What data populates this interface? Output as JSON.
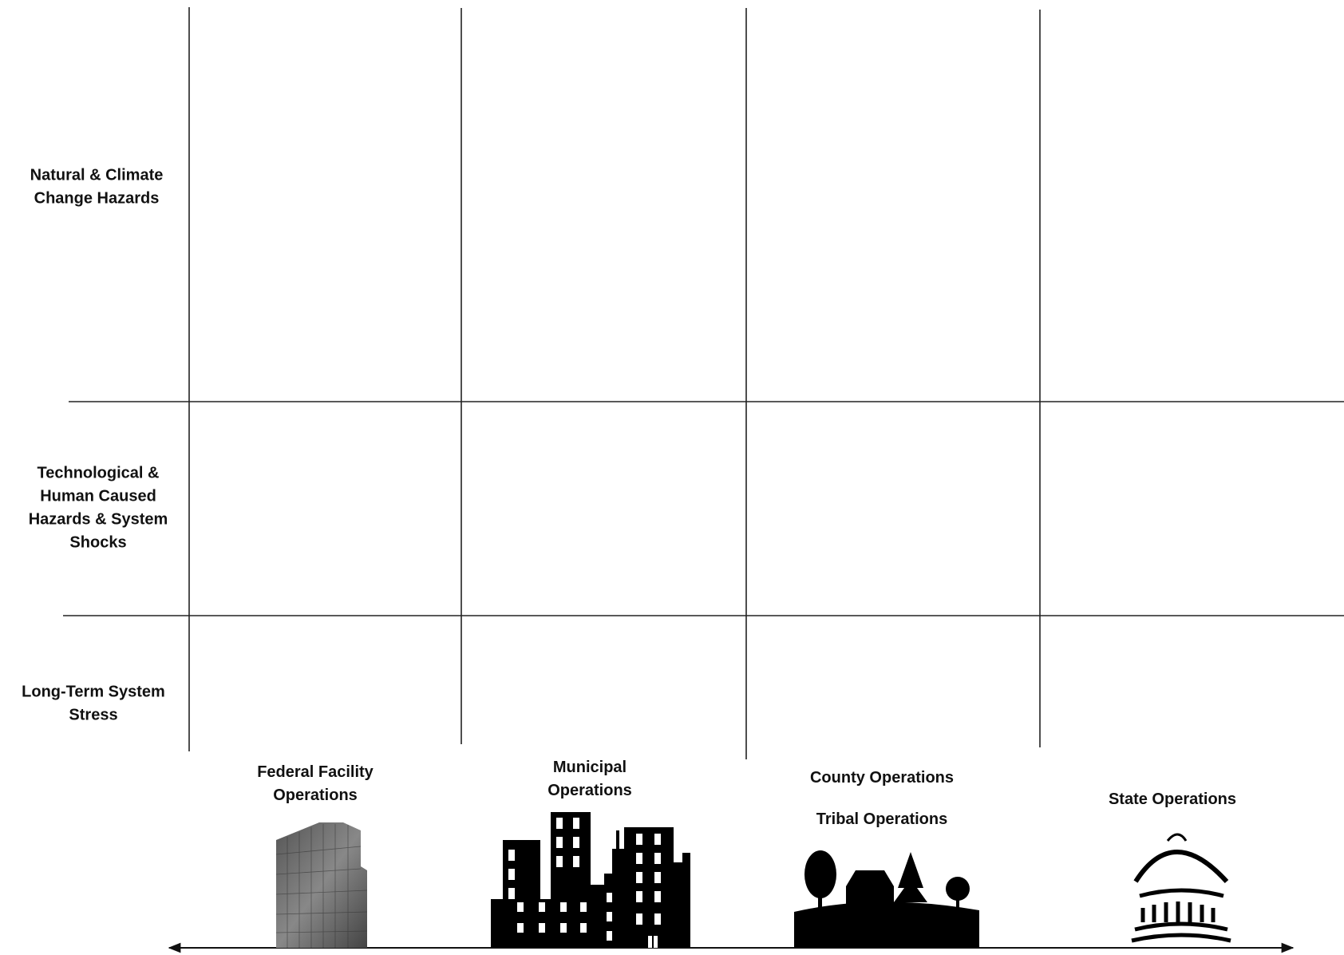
{
  "rows": [
    {
      "label": [
        "Natural & Climate",
        "Change Hazards"
      ]
    },
    {
      "label": [
        "Technological &",
        "Human Caused",
        "Hazards & System",
        "Shocks"
      ]
    },
    {
      "label": [
        "Long-Term System",
        "Stress"
      ]
    }
  ],
  "columns": [
    {
      "label": [
        "Federal Facility",
        "Operations"
      ]
    },
    {
      "label": [
        "Municipal",
        "Operations"
      ]
    },
    {
      "label": [
        "County Operations"
      ],
      "sublabel": "Tribal Operations"
    },
    {
      "label": [
        "State Operations"
      ]
    }
  ]
}
